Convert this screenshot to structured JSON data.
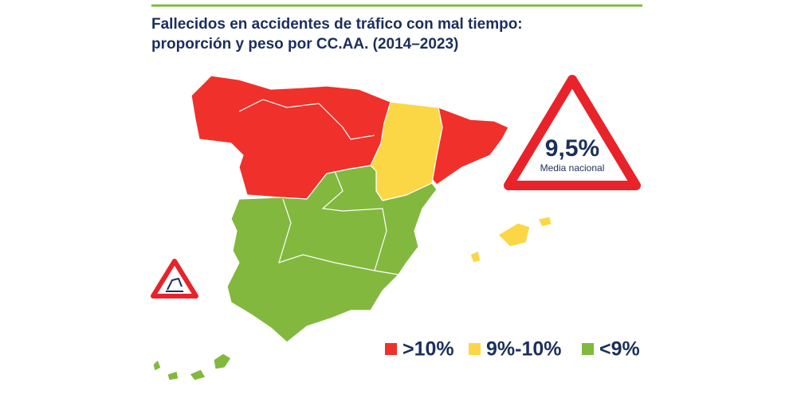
{
  "header": {
    "title": [
      "Fallecidos en accidentes de tráfico con mal tiempo:",
      "proporción y peso por CC.AA. (2014–2023)"
    ]
  },
  "badge": {
    "value": "9,5%",
    "label": "Media nacional"
  },
  "legend": {
    "items": [
      {
        "label": ">10%",
        "color": "#f0302a"
      },
      {
        "label": "9%-10%",
        "color": "#fbd745"
      },
      {
        "label": "<9%",
        "color": "#82b83e"
      }
    ]
  }
}
